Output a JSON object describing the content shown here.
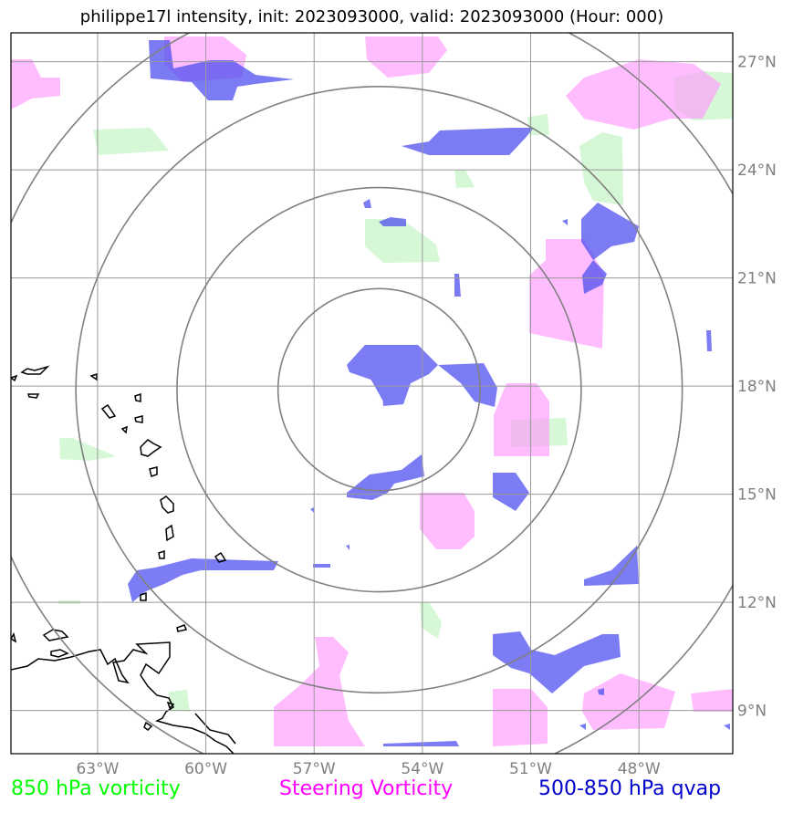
{
  "title": "philippe17l intensity, init: 2023093000, valid: 2023093000 (Hour: 000)",
  "map": {
    "lon_labels": [
      "63°W",
      "60°W",
      "57°W",
      "54°W",
      "51°W",
      "48°W"
    ],
    "lat_labels": [
      "27°N",
      "24°N",
      "21°N",
      "18°N",
      "15°N",
      "12°N",
      "9°N"
    ],
    "lon_ticks": [
      -63,
      -60,
      -57,
      -54,
      -51,
      -48
    ],
    "lat_ticks": [
      27,
      24,
      21,
      18,
      15,
      12,
      9
    ],
    "lon_range": [
      -65.4,
      -45.4
    ],
    "lat_range": [
      7.8,
      27.8
    ],
    "storm_center": {
      "lon": -55.2,
      "lat": 17.9
    },
    "range_ring_radii_deg": [
      2.8,
      5.6,
      8.4,
      11.2
    ],
    "colors": {
      "vort850": "#c8f5c8",
      "steering": "#ff99ff",
      "qvap": "#5050f0",
      "grid": "#999999",
      "rings": "#808080",
      "coast": "#000000",
      "tick_labels": "#808080"
    }
  },
  "legend": {
    "vort850": {
      "label": "850 hPa vorticity",
      "color": "#00ff00"
    },
    "steering": {
      "label": "Steering Vorticity",
      "color": "#ff00ff"
    },
    "qvap": {
      "label": "500-850 hPa qvap",
      "color": "#0000cd"
    }
  }
}
